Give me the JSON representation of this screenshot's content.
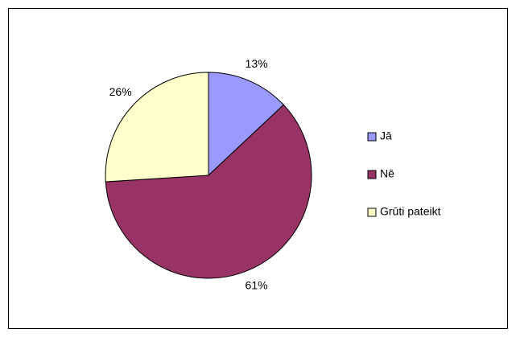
{
  "chart_data": {
    "type": "pie",
    "categories": [
      "Jā",
      "Nē",
      "Grūti pateikt"
    ],
    "values": [
      13,
      61,
      26
    ],
    "value_labels": [
      "13%",
      "61%",
      "26%"
    ],
    "colors": [
      "#9999ff",
      "#993366",
      "#ffffcc"
    ],
    "legend": "right"
  }
}
